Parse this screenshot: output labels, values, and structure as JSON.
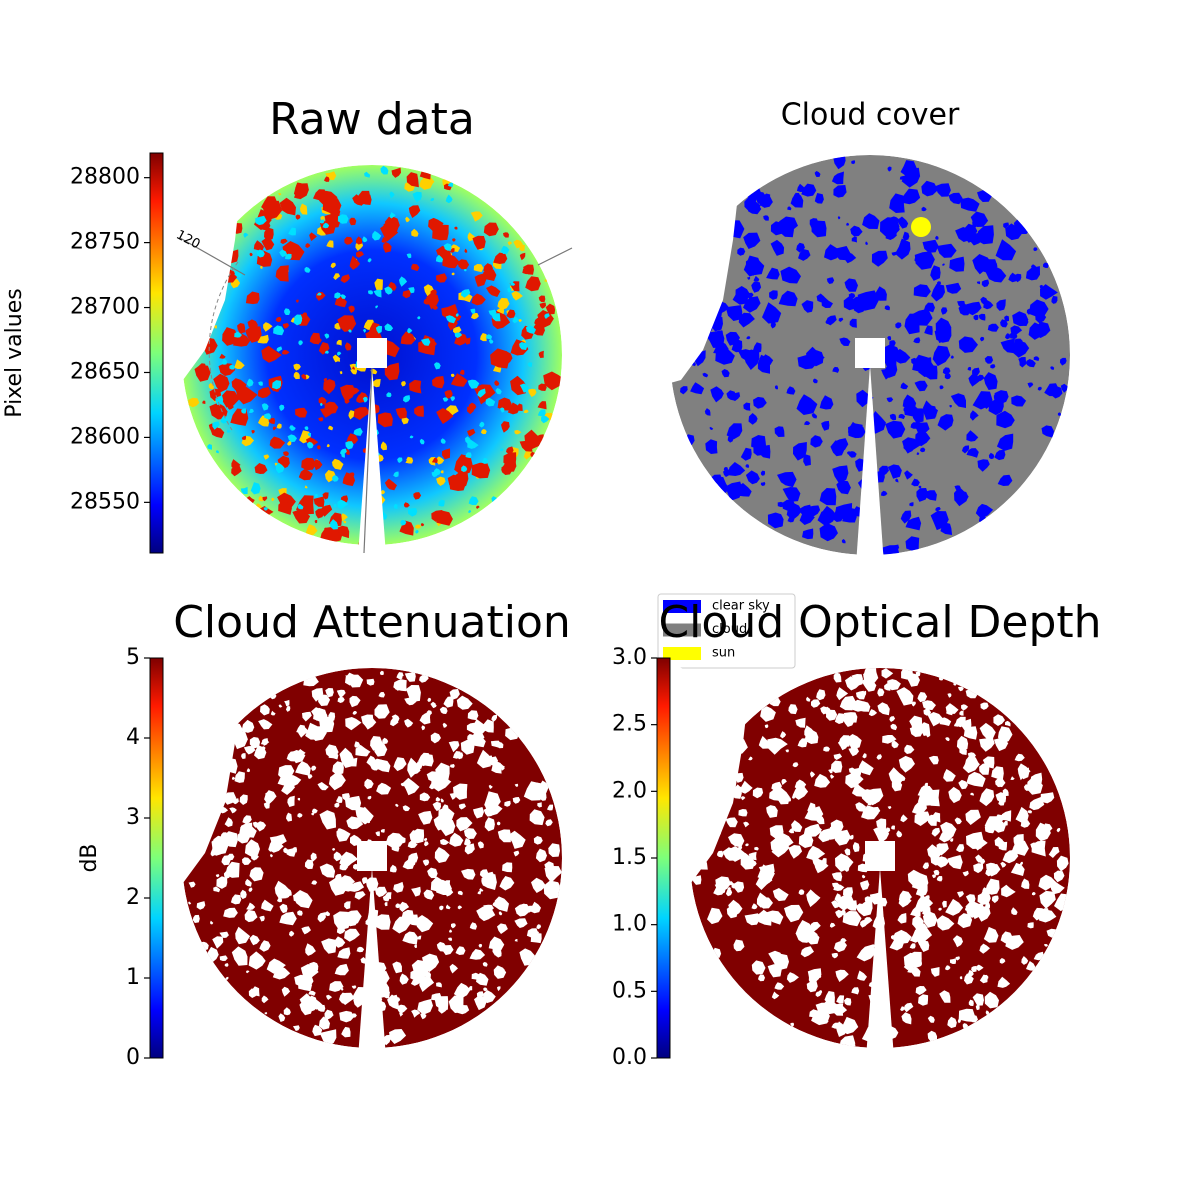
{
  "chart_data": [
    {
      "type": "image",
      "title": "Raw data",
      "colorbar_label": "Pixel values",
      "colormap": "jet",
      "ylim": [
        28511,
        28819
      ],
      "yticks": [
        28550,
        28600,
        28650,
        28700,
        28750,
        28800
      ],
      "annotation": "120"
    },
    {
      "type": "image",
      "title": "Cloud cover",
      "series": [
        {
          "name": "clear sky",
          "color": "#0000ff"
        },
        {
          "name": "cloud",
          "color": "#808080"
        },
        {
          "name": "sun",
          "color": "#ffff00"
        }
      ],
      "legend": "lower left"
    },
    {
      "type": "image",
      "title": "Cloud Attenuation",
      "colorbar_label": "dB",
      "colormap": "jet",
      "ylim": [
        0,
        5
      ],
      "yticks": [
        0,
        1,
        2,
        3,
        4,
        5
      ]
    },
    {
      "type": "image",
      "title": "Cloud Optical Depth",
      "colormap": "jet",
      "ylim": [
        0,
        3
      ],
      "yticks": [
        {
          "value": 0,
          "label": "0.0"
        },
        0.5,
        {
          "value": 1,
          "label": "1.0"
        },
        1.5,
        {
          "value": 2,
          "label": "2.0"
        },
        2.5,
        {
          "value": 3,
          "label": "3.0"
        }
      ]
    }
  ]
}
